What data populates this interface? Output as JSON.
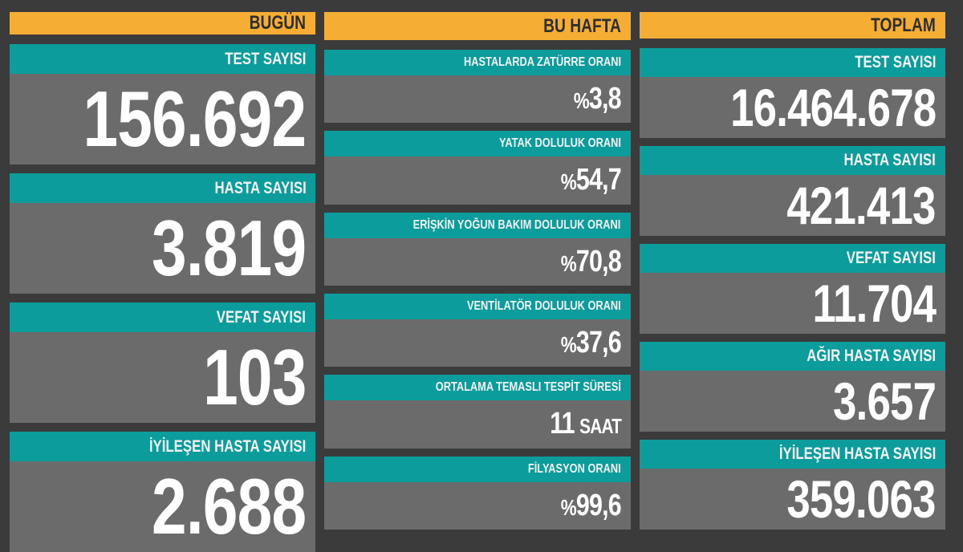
{
  "colors": {
    "background": "#3b3b3b",
    "header": "#f5ae33",
    "label": "#0d9c9c",
    "value_panel": "#6b6b6b"
  },
  "today": {
    "title": "BUGÜN",
    "cards": [
      {
        "label": "TEST SAYISI",
        "value": "156.692"
      },
      {
        "label": "HASTA SAYISI",
        "value": "3.819"
      },
      {
        "label": "VEFAT SAYISI",
        "value": "103"
      },
      {
        "label": "İYİLEŞEN HASTA SAYISI",
        "value": "2.688"
      }
    ]
  },
  "week": {
    "title": "BU HAFTA",
    "cards": [
      {
        "label": "HASTALARDA ZATÜRRE ORANI",
        "prefix": "%",
        "value": "3,8"
      },
      {
        "label": "YATAK DOLULUK ORANI",
        "prefix": "%",
        "value": "54,7"
      },
      {
        "label": "ERİŞKİN YOĞUN BAKIM DOLULUK ORANI",
        "prefix": "%",
        "value": "70,8"
      },
      {
        "label": "VENTİLATÖR DOLULUK ORANI",
        "prefix": "%",
        "value": "37,6"
      },
      {
        "label": "ORTALAMA TEMASLI TESPİT SÜRESİ",
        "value": "11",
        "unit": "SAAT"
      },
      {
        "label": "FİLYASYON ORANI",
        "prefix": "%",
        "value": "99,6"
      }
    ]
  },
  "total": {
    "title": "TOPLAM",
    "cards": [
      {
        "label": "TEST SAYISI",
        "value": "16.464.678"
      },
      {
        "label": "HASTA SAYISI",
        "value": "421.413"
      },
      {
        "label": "VEFAT SAYISI",
        "value": "11.704"
      },
      {
        "label": "AĞIR HASTA SAYISI",
        "value": "3.657"
      },
      {
        "label": "İYİLEŞEN HASTA SAYISI",
        "value": "359.063"
      }
    ]
  }
}
